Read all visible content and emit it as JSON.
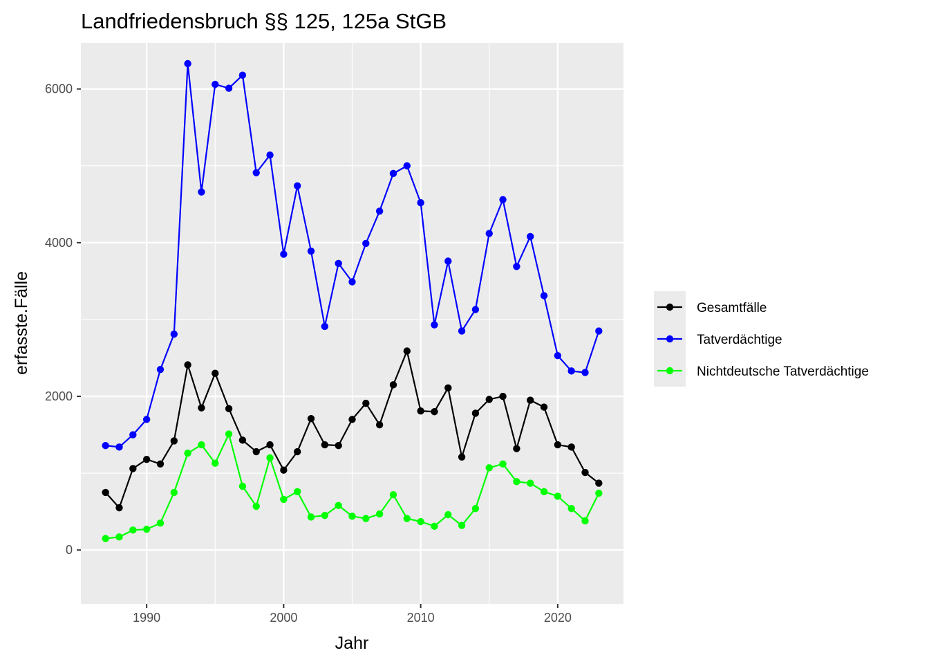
{
  "chart_data": {
    "type": "line",
    "title": "Landfriedensbruch §§ 125, 125a StGB",
    "xlabel": "Jahr",
    "ylabel": "erfasste.Fälle",
    "xlim": [
      1985.2,
      2024.8
    ],
    "ylim": [
      -700,
      6600
    ],
    "x_ticks": [
      1990,
      2000,
      2010,
      2020
    ],
    "y_ticks": [
      0,
      2000,
      4000,
      6000
    ],
    "grid": true,
    "legend_position": "right",
    "x": [
      1987,
      1988,
      1989,
      1990,
      1991,
      1992,
      1993,
      1994,
      1995,
      1996,
      1997,
      1998,
      1999,
      2000,
      2001,
      2002,
      2003,
      2004,
      2005,
      2006,
      2007,
      2008,
      2009,
      2010,
      2011,
      2012,
      2013,
      2014,
      2015,
      2016,
      2017,
      2018,
      2019,
      2020,
      2021,
      2022,
      2023
    ],
    "series": [
      {
        "name": "Gesamtfälle",
        "color": "#000000",
        "values": [
          750,
          550,
          1060,
          1180,
          1120,
          1420,
          2410,
          1850,
          2300,
          1840,
          1430,
          1280,
          1370,
          1040,
          1280,
          1710,
          1370,
          1360,
          1700,
          1910,
          1630,
          2150,
          2590,
          1810,
          1800,
          2110,
          1210,
          1780,
          1960,
          2000,
          1320,
          1950,
          1860,
          1370,
          1340,
          1010,
          870
        ]
      },
      {
        "name": "Tatverdächtige",
        "color": "#0000ff",
        "values": [
          1360,
          1340,
          1500,
          1700,
          2350,
          2810,
          6330,
          4660,
          6060,
          6010,
          6180,
          4910,
          5140,
          3850,
          4740,
          3890,
          2910,
          3730,
          3490,
          3990,
          4410,
          4900,
          5000,
          4520,
          2930,
          3760,
          2850,
          3130,
          4120,
          4560,
          3690,
          4080,
          3310,
          2530,
          2330,
          2310,
          2850
        ]
      },
      {
        "name": "Nichtdeutsche Tatverdächtige",
        "color": "#00ff00",
        "values": [
          150,
          170,
          260,
          270,
          350,
          750,
          1260,
          1370,
          1130,
          1510,
          830,
          570,
          1200,
          660,
          760,
          430,
          450,
          580,
          440,
          410,
          470,
          720,
          410,
          370,
          310,
          460,
          320,
          540,
          1070,
          1120,
          890,
          870,
          760,
          700,
          540,
          380,
          740
        ]
      }
    ]
  }
}
